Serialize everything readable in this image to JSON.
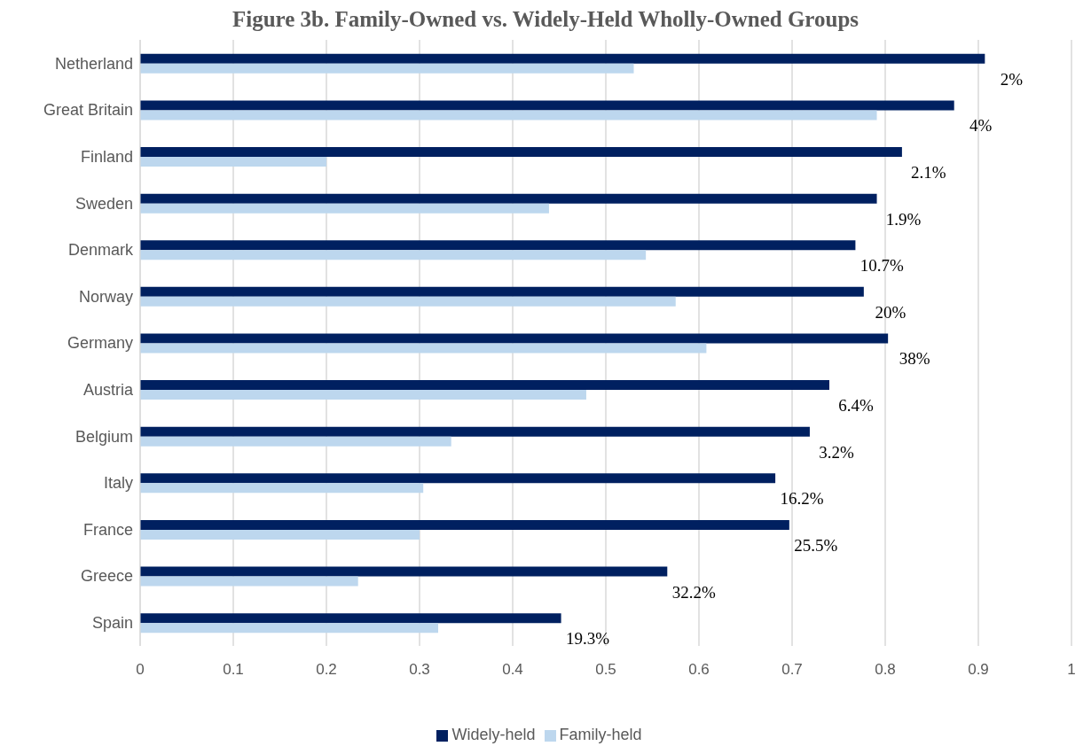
{
  "chart_data": {
    "type": "bar",
    "orientation": "horizontal",
    "title": "Figure 3b. Family-Owned vs. Widely-Held Wholly-Owned Groups",
    "categories": [
      "Netherland",
      "Great Britain",
      "Finland",
      "Sweden",
      "Denmark",
      "Norway",
      "Germany",
      "Austria",
      "Belgium",
      "Italy",
      "France",
      "Greece",
      "Spain"
    ],
    "series": [
      {
        "name": "Widely-held",
        "color": "#002060",
        "values": [
          0.907,
          0.874,
          0.818,
          0.791,
          0.768,
          0.777,
          0.803,
          0.74,
          0.719,
          0.682,
          0.697,
          0.566,
          0.452
        ]
      },
      {
        "name": "Family-held",
        "color": "#bdd7ee",
        "values": [
          0.53,
          0.791,
          0.2,
          0.439,
          0.543,
          0.575,
          0.608,
          0.479,
          0.334,
          0.304,
          0.3,
          0.234,
          0.32
        ]
      }
    ],
    "xlim": [
      0,
      1
    ],
    "xticks": [
      0,
      0.1,
      0.2,
      0.3,
      0.4,
      0.5,
      0.6,
      0.7,
      0.8,
      0.9,
      1
    ],
    "grid": "x",
    "legend": "bottom",
    "annotations": [
      "2%",
      "4%",
      "2.1%",
      "1.9%",
      "10.7%",
      "20%",
      "38%",
      "6.4%",
      "3.2%",
      "16.2%",
      "25.5%",
      "32.2%",
      "19.3%"
    ]
  }
}
